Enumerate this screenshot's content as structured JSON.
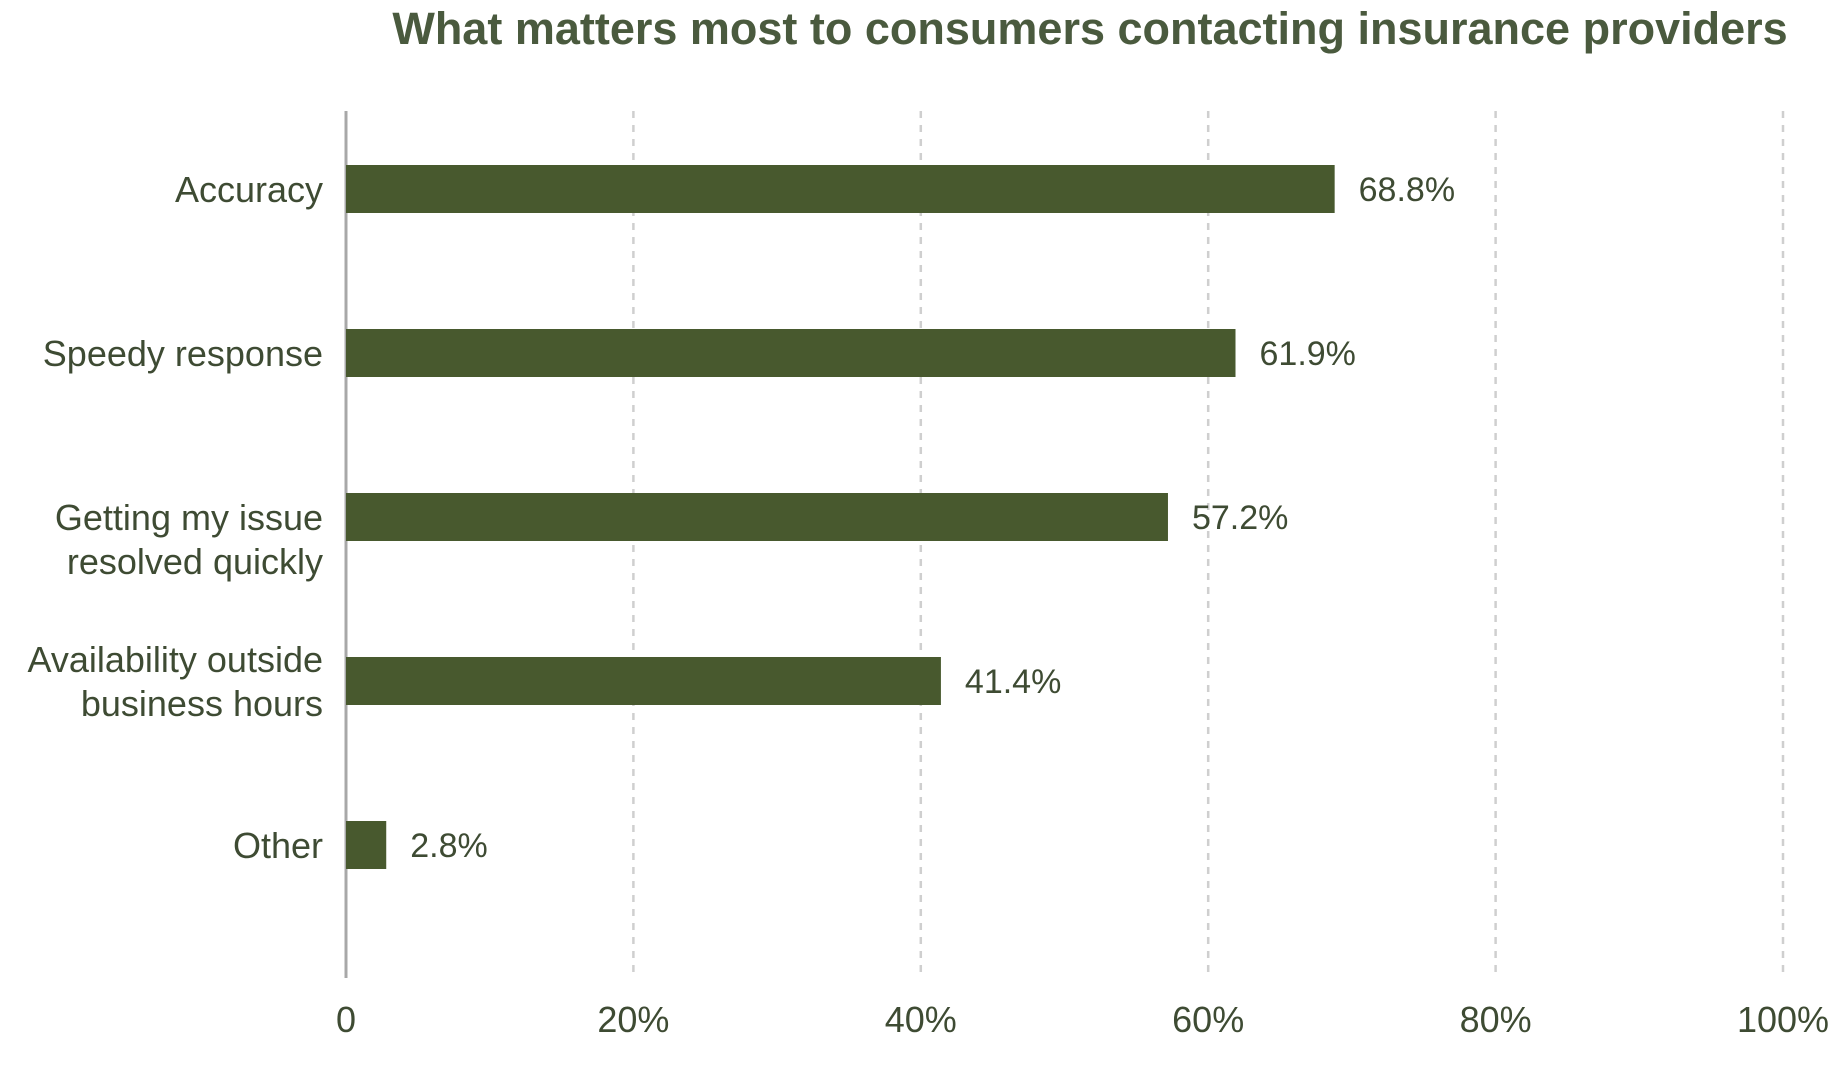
{
  "chart_data": {
    "type": "bar",
    "orientation": "horizontal",
    "title": "What matters most to consumers contacting insurance providers",
    "categories": [
      [
        "Accuracy"
      ],
      [
        "Speedy response"
      ],
      [
        "Getting my issue",
        "resolved quickly"
      ],
      [
        "Availability outside",
        "business hours"
      ],
      [
        "Other"
      ]
    ],
    "values": [
      68.8,
      61.9,
      57.2,
      41.4,
      2.8
    ],
    "value_labels": [
      "68.8%",
      "61.9%",
      "57.2%",
      "41.4%",
      "2.8%"
    ],
    "xlim": [
      0,
      100
    ],
    "xticks": [
      0,
      20,
      40,
      60,
      80,
      100
    ],
    "xtick_labels": [
      "0",
      "20%",
      "40%",
      "60%",
      "80%",
      "100%"
    ],
    "grid": "vertical dashed",
    "colors": {
      "bar": "#48592e",
      "title": "#4a5a3e",
      "text": "#3e4b33",
      "grid": "#cfcfcf",
      "axis": "#a8a8a8"
    }
  }
}
